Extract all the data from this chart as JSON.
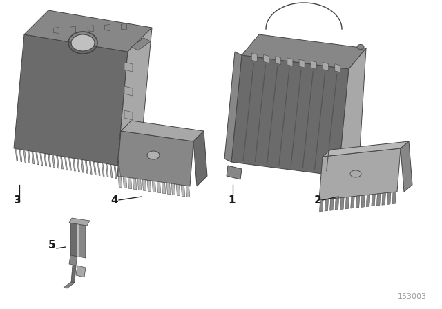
{
  "background_color": "#ffffff",
  "part_color_dark": "#6b6b6b",
  "part_color_mid": "#878787",
  "part_color_light": "#a8a8a8",
  "part_color_lighter": "#b8b8b8",
  "reference_number": "153003",
  "ref_color": "#999999",
  "label_color": "#1a1a1a",
  "label_fontsize": 11,
  "ref_fontsize": 8,
  "fig_width": 6.4,
  "fig_height": 4.48,
  "dpi": 100
}
